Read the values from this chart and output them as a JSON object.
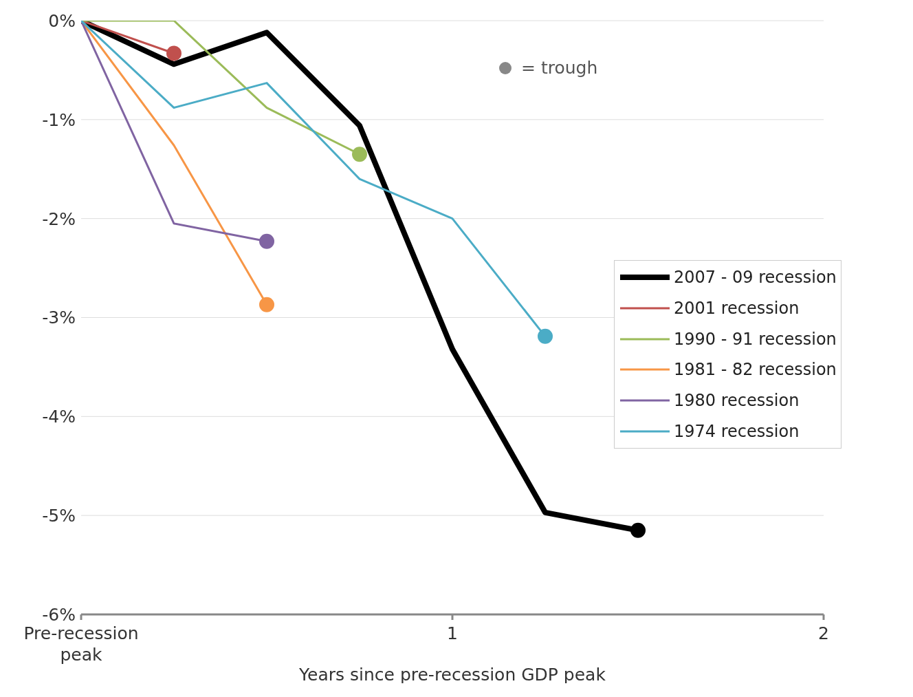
{
  "chart_data": {
    "type": "line",
    "xlabel": "Years since pre-recession GDP peak",
    "xlim": [
      0,
      2
    ],
    "xticks": [
      {
        "value": 0,
        "label": "Pre-recession peak"
      },
      1,
      2
    ],
    "ylim": [
      -6,
      0
    ],
    "yticks": [
      {
        "value": 0,
        "label": "0%"
      },
      {
        "value": -1,
        "label": "-1%"
      },
      {
        "value": -2,
        "label": "-2%"
      },
      {
        "value": -3,
        "label": "-3%"
      },
      {
        "value": -4,
        "label": "-4%"
      },
      {
        "value": -5,
        "label": "-5%"
      },
      {
        "value": -6,
        "label": "-6%"
      }
    ],
    "grid": "y",
    "legend": "right",
    "line_style": "solid",
    "annotations": [
      "= trough"
    ],
    "series": [
      {
        "name": "2007 - 09 recession",
        "color": "#000000",
        "x": [
          0,
          0.25,
          0.5,
          0.75,
          1,
          1.25,
          1.5
        ],
        "values": [
          0,
          -0.44,
          -0.12,
          -1.06,
          -3.32,
          -4.97,
          -5.15
        ]
      },
      {
        "name": "2001 recession",
        "color": "#c0504d",
        "x": [
          0,
          0.25
        ],
        "values": [
          0,
          -0.33
        ]
      },
      {
        "name": "1990 - 91 recession",
        "color": "#9bbb59",
        "x": [
          0,
          0.25,
          0.5,
          0.75
        ],
        "values": [
          0,
          0,
          -0.88,
          -1.35
        ]
      },
      {
        "name": "1981 - 82 recession",
        "color": "#f79646",
        "x": [
          0,
          0.25,
          0.5
        ],
        "values": [
          0,
          -1.26,
          -2.87
        ]
      },
      {
        "name": "1980 recession",
        "color": "#8064a2",
        "x": [
          0,
          0.25,
          0.5
        ],
        "values": [
          0,
          -2.05,
          -2.23
        ]
      },
      {
        "name": "1974 recession",
        "color": "#4bacc6",
        "x": [
          0,
          0.25,
          0.5,
          0.75,
          1,
          1.25
        ],
        "values": [
          0,
          -0.88,
          -0.63,
          -1.6,
          -2.0,
          -3.19
        ]
      },
      {
        "type": "scatter",
        "marker": "circle",
        "x": [
          1.5,
          0.25,
          0.75,
          0.5,
          0.5,
          1.25
        ],
        "values": [
          -5.15,
          -0.33,
          -1.35,
          -2.87,
          -2.23,
          -3.19
        ],
        "colors": [
          "#000000",
          "#c0504d",
          "#9bbb59",
          "#f79646",
          "#8064a2",
          "#4bacc6"
        ]
      }
    ]
  }
}
